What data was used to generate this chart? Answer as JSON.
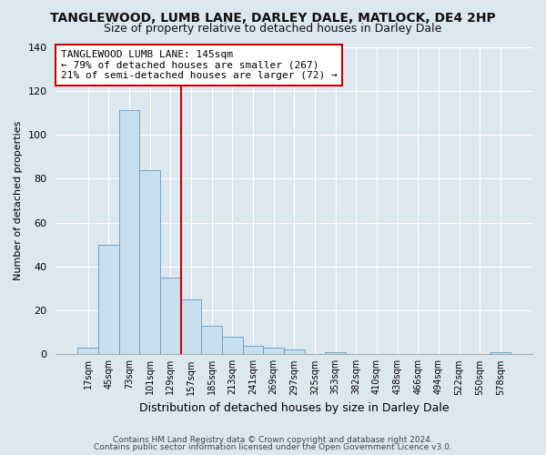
{
  "title": "TANGLEWOOD, LUMB LANE, DARLEY DALE, MATLOCK, DE4 2HP",
  "subtitle": "Size of property relative to detached houses in Darley Dale",
  "bar_color": "#c8dff0",
  "bar_edge_color": "#6699bb",
  "xlabel": "Distribution of detached houses by size in Darley Dale",
  "ylabel": "Number of detached properties",
  "bin_labels": [
    "17sqm",
    "45sqm",
    "73sqm",
    "101sqm",
    "129sqm",
    "157sqm",
    "185sqm",
    "213sqm",
    "241sqm",
    "269sqm",
    "297sqm",
    "325sqm",
    "353sqm",
    "382sqm",
    "410sqm",
    "438sqm",
    "466sqm",
    "494sqm",
    "522sqm",
    "550sqm",
    "578sqm"
  ],
  "bar_heights": [
    3,
    50,
    111,
    84,
    35,
    25,
    13,
    8,
    4,
    3,
    2,
    0,
    1,
    0,
    0,
    0,
    0,
    0,
    0,
    0,
    1
  ],
  "ylim": [
    0,
    140
  ],
  "yticks": [
    0,
    20,
    40,
    60,
    80,
    100,
    120,
    140
  ],
  "vline_index": 4.5,
  "annotation_title": "TANGLEWOOD LUMB LANE: 145sqm",
  "annotation_line1": "← 79% of detached houses are smaller (267)",
  "annotation_line2": "21% of semi-detached houses are larger (72) →",
  "annotation_box_color": "#ffffff",
  "annotation_box_edge": "#cc0000",
  "vline_color": "#cc0000",
  "footer1": "Contains HM Land Registry data © Crown copyright and database right 2024.",
  "footer2": "Contains public sector information licensed under the Open Government Licence v3.0.",
  "background_color": "#dce8f0",
  "plot_background": "#dce8f0"
}
